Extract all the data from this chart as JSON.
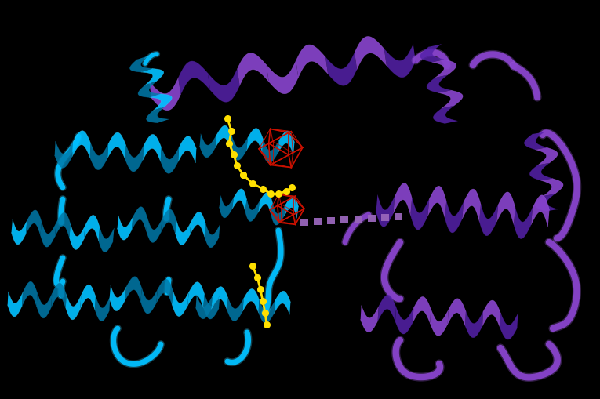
{
  "background_color": "#000000",
  "cyan": "#00BFFF",
  "cyan_light": "#40D4FF",
  "cyan_dark": "#007AAA",
  "cyan_shadow": "#005580",
  "purple": "#8844CC",
  "purple_light": "#AA66EE",
  "purple_dark": "#5522AA",
  "purple_shadow": "#3B1480",
  "yellow": "#FFE000",
  "red": "#CC1100",
  "dash_color": "#9966BB",
  "figsize": [
    7.65,
    5.1
  ],
  "dpi": 100
}
